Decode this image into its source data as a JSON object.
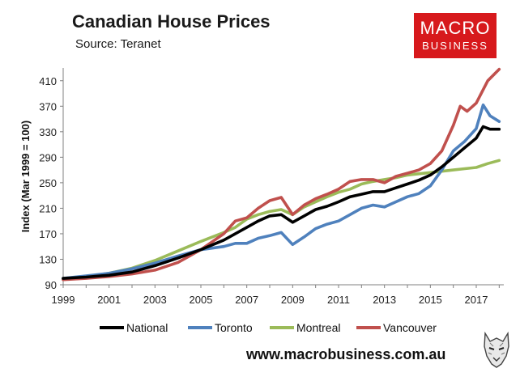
{
  "chart_data": {
    "type": "line",
    "title": "Canadian House Prices",
    "subtitle": "Source: Teranet",
    "ylabel": "Index (Mar 1999 = 100)",
    "xlabel": "",
    "xlim": [
      1999,
      2018.2
    ],
    "ylim": [
      90,
      430
    ],
    "yticks": [
      90,
      130,
      170,
      210,
      250,
      290,
      330,
      370,
      410
    ],
    "xticks": [
      1999,
      2001,
      2003,
      2005,
      2007,
      2009,
      2011,
      2013,
      2015,
      2017
    ],
    "grid": false,
    "legend": "bottom",
    "series": [
      {
        "name": "Montreal",
        "color": "#9bbb59",
        "points": [
          [
            1999,
            100
          ],
          [
            2000,
            103
          ],
          [
            2001,
            108
          ],
          [
            2002,
            116
          ],
          [
            2003,
            128
          ],
          [
            2004,
            143
          ],
          [
            2005,
            158
          ],
          [
            2006,
            172
          ],
          [
            2006.5,
            180
          ],
          [
            2007,
            193
          ],
          [
            2007.5,
            200
          ],
          [
            2008,
            205
          ],
          [
            2008.5,
            208
          ],
          [
            2009,
            200
          ],
          [
            2009.5,
            212
          ],
          [
            2010,
            220
          ],
          [
            2010.5,
            228
          ],
          [
            2011,
            235
          ],
          [
            2011.5,
            240
          ],
          [
            2012,
            248
          ],
          [
            2012.5,
            252
          ],
          [
            2013,
            255
          ],
          [
            2013.5,
            258
          ],
          [
            2014,
            262
          ],
          [
            2014.5,
            264
          ],
          [
            2015,
            266
          ],
          [
            2015.5,
            268
          ],
          [
            2016,
            270
          ],
          [
            2016.5,
            272
          ],
          [
            2017,
            274
          ],
          [
            2017.5,
            280
          ],
          [
            2018,
            285
          ]
        ]
      },
      {
        "name": "Toronto",
        "color": "#4f81bd",
        "points": [
          [
            1999,
            100
          ],
          [
            2000,
            104
          ],
          [
            2001,
            108
          ],
          [
            2002,
            115
          ],
          [
            2003,
            124
          ],
          [
            2004,
            135
          ],
          [
            2005,
            145
          ],
          [
            2006,
            150
          ],
          [
            2006.5,
            155
          ],
          [
            2007,
            155
          ],
          [
            2007.5,
            163
          ],
          [
            2008,
            167
          ],
          [
            2008.5,
            172
          ],
          [
            2009,
            153
          ],
          [
            2009.5,
            165
          ],
          [
            2010,
            178
          ],
          [
            2010.5,
            185
          ],
          [
            2011,
            190
          ],
          [
            2011.5,
            200
          ],
          [
            2012,
            210
          ],
          [
            2012.5,
            215
          ],
          [
            2013,
            212
          ],
          [
            2013.5,
            220
          ],
          [
            2014,
            228
          ],
          [
            2014.5,
            233
          ],
          [
            2015,
            245
          ],
          [
            2015.5,
            270
          ],
          [
            2016,
            300
          ],
          [
            2016.5,
            315
          ],
          [
            2017,
            335
          ],
          [
            2017.3,
            372
          ],
          [
            2017.6,
            355
          ],
          [
            2018,
            346
          ]
        ]
      },
      {
        "name": "Vancouver",
        "color": "#c0504d",
        "points": [
          [
            1999,
            98
          ],
          [
            2000,
            100
          ],
          [
            2001,
            103
          ],
          [
            2002,
            107
          ],
          [
            2003,
            113
          ],
          [
            2004,
            125
          ],
          [
            2005,
            145
          ],
          [
            2006,
            170
          ],
          [
            2006.5,
            190
          ],
          [
            2007,
            195
          ],
          [
            2007.5,
            210
          ],
          [
            2008,
            222
          ],
          [
            2008.5,
            227
          ],
          [
            2009,
            200
          ],
          [
            2009.5,
            215
          ],
          [
            2010,
            225
          ],
          [
            2010.5,
            232
          ],
          [
            2011,
            240
          ],
          [
            2011.5,
            252
          ],
          [
            2012,
            255
          ],
          [
            2012.5,
            255
          ],
          [
            2013,
            250
          ],
          [
            2013.5,
            260
          ],
          [
            2014,
            265
          ],
          [
            2014.5,
            270
          ],
          [
            2015,
            280
          ],
          [
            2015.5,
            300
          ],
          [
            2016,
            340
          ],
          [
            2016.3,
            370
          ],
          [
            2016.6,
            362
          ],
          [
            2017,
            375
          ],
          [
            2017.5,
            410
          ],
          [
            2018,
            428
          ]
        ]
      },
      {
        "name": "National",
        "color": "#000000",
        "points": [
          [
            1999,
            100
          ],
          [
            2000,
            102
          ],
          [
            2001,
            105
          ],
          [
            2002,
            110
          ],
          [
            2003,
            120
          ],
          [
            2004,
            132
          ],
          [
            2005,
            145
          ],
          [
            2006,
            160
          ],
          [
            2006.5,
            170
          ],
          [
            2007,
            180
          ],
          [
            2007.5,
            190
          ],
          [
            2008,
            198
          ],
          [
            2008.5,
            200
          ],
          [
            2009,
            188
          ],
          [
            2009.5,
            198
          ],
          [
            2010,
            208
          ],
          [
            2010.5,
            213
          ],
          [
            2011,
            220
          ],
          [
            2011.5,
            228
          ],
          [
            2012,
            232
          ],
          [
            2012.5,
            236
          ],
          [
            2013,
            236
          ],
          [
            2013.5,
            242
          ],
          [
            2014,
            248
          ],
          [
            2014.5,
            254
          ],
          [
            2015,
            262
          ],
          [
            2015.5,
            275
          ],
          [
            2016,
            290
          ],
          [
            2016.5,
            305
          ],
          [
            2017,
            320
          ],
          [
            2017.3,
            338
          ],
          [
            2017.6,
            334
          ],
          [
            2018,
            334
          ]
        ]
      }
    ]
  },
  "logo": {
    "line1": "MACRO",
    "line2": "BUSINESS"
  },
  "footer": {
    "url": "www.macrobusiness.com.au"
  },
  "colors": {
    "axis": "#808080",
    "brand": "#d7191c"
  }
}
